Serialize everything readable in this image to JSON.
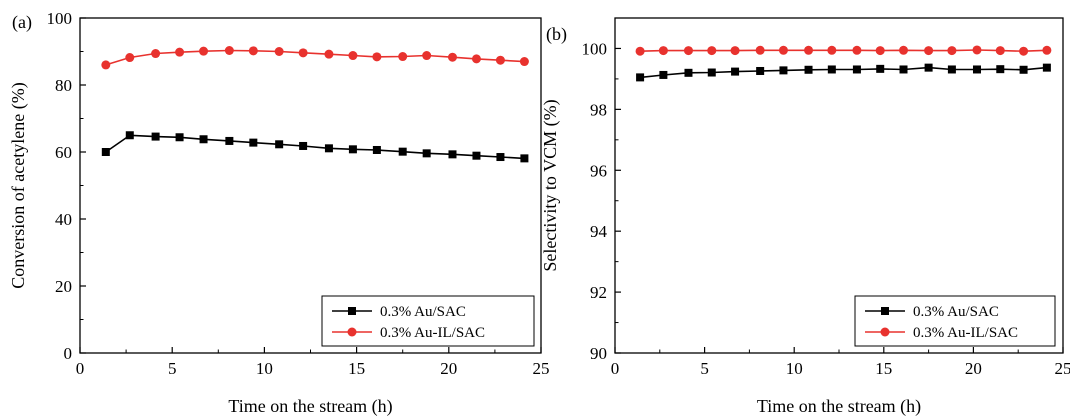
{
  "chart_data": [
    {
      "type": "line",
      "panel_label": "(a)",
      "xlabel": "Time on the stream (h)",
      "ylabel": "Conversion of acetylene (%)",
      "xlim": [
        0,
        25
      ],
      "ylim": [
        0,
        100
      ],
      "xticks": [
        0,
        5,
        10,
        15,
        20,
        25
      ],
      "yticks": [
        0,
        20,
        40,
        60,
        80,
        100
      ],
      "legend_position": "bottom-right",
      "grid": false,
      "x": [
        1.4,
        2.7,
        4.1,
        5.4,
        6.7,
        8.1,
        9.4,
        10.8,
        12.1,
        13.5,
        14.8,
        16.1,
        17.5,
        18.8,
        20.2,
        21.5,
        22.8,
        24.1
      ],
      "series": [
        {
          "name": "0.3% Au/SAC",
          "color": "#000000",
          "marker": "square",
          "values": [
            60.0,
            65.0,
            64.6,
            64.4,
            63.8,
            63.3,
            62.8,
            62.3,
            61.8,
            61.1,
            60.8,
            60.6,
            60.1,
            59.6,
            59.3,
            58.9,
            58.5,
            58.1
          ]
        },
        {
          "name": "0.3% Au-IL/SAC",
          "color": "#e8322e",
          "marker": "circle",
          "values": [
            86.0,
            88.2,
            89.4,
            89.8,
            90.1,
            90.3,
            90.2,
            90.0,
            89.6,
            89.2,
            88.8,
            88.4,
            88.5,
            88.8,
            88.3,
            87.8,
            87.4,
            87.0
          ]
        }
      ]
    },
    {
      "type": "line",
      "panel_label": "(b)",
      "xlabel": "Time on the stream (h)",
      "ylabel": "Selectivity to VCM (%)",
      "xlim": [
        0,
        25
      ],
      "ylim": [
        90,
        101
      ],
      "xticks": [
        0,
        5,
        10,
        15,
        20,
        25
      ],
      "yticks": [
        90,
        92,
        94,
        96,
        98,
        100
      ],
      "legend_position": "bottom-right",
      "grid": false,
      "x": [
        1.4,
        2.7,
        4.1,
        5.4,
        6.7,
        8.1,
        9.4,
        10.8,
        12.1,
        13.5,
        14.8,
        16.1,
        17.5,
        18.8,
        20.2,
        21.5,
        22.8,
        24.1
      ],
      "series": [
        {
          "name": "0.3% Au/SAC",
          "color": "#000000",
          "marker": "square",
          "values": [
            99.05,
            99.13,
            99.2,
            99.21,
            99.24,
            99.26,
            99.28,
            99.3,
            99.31,
            99.31,
            99.33,
            99.31,
            99.37,
            99.31,
            99.31,
            99.32,
            99.3,
            99.37
          ]
        },
        {
          "name": "0.3% Au-IL/SAC",
          "color": "#e8322e",
          "marker": "circle",
          "values": [
            99.91,
            99.93,
            99.93,
            99.93,
            99.93,
            99.94,
            99.94,
            99.94,
            99.94,
            99.94,
            99.93,
            99.94,
            99.93,
            99.93,
            99.95,
            99.93,
            99.91,
            99.94
          ]
        }
      ]
    }
  ]
}
